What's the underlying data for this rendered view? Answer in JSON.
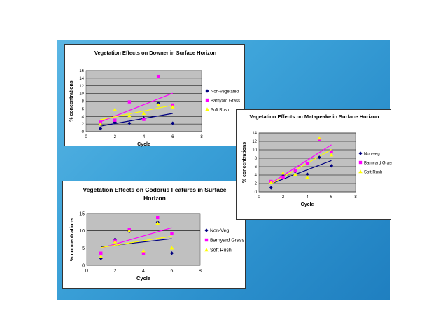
{
  "colors": {
    "plot_bg": "#c0c0c0",
    "grid": "#000000",
    "non_veg": "#000080",
    "barnyard": "#ff00ff",
    "soft_rush": "#ffff00",
    "slide_accent": "#2b8fcc"
  },
  "chart_data": [
    {
      "id": "downer",
      "type": "scatter",
      "title": "Vegetation Effects on Downer in Surface Horizon",
      "xlabel": "Cycle",
      "ylabel": "% concentrations",
      "xlim": [
        0,
        8
      ],
      "ylim": [
        0,
        16
      ],
      "xticks": [
        0,
        2,
        4,
        6,
        8
      ],
      "yticks": [
        0,
        2,
        4,
        6,
        8,
        10,
        12,
        14,
        16
      ],
      "grid": true,
      "legend_position": "right",
      "trendlines": true,
      "series": [
        {
          "name": "Non-Vegetated",
          "marker": "diamond",
          "color_key": "non_veg",
          "x": [
            1,
            2,
            3,
            4,
            5,
            6
          ],
          "y": [
            0.8,
            2.5,
            2.2,
            3.5,
            7.5,
            2.2
          ]
        },
        {
          "name": "Barnyard Grass",
          "marker": "square",
          "color_key": "barnyard",
          "x": [
            1,
            2,
            3,
            4,
            5,
            6
          ],
          "y": [
            2.5,
            3.0,
            7.8,
            3.2,
            14.5,
            7.0
          ]
        },
        {
          "name": "Soft Rush",
          "marker": "triangle",
          "color_key": "soft_rush",
          "x": [
            1,
            2,
            3,
            4,
            5,
            6
          ],
          "y": [
            2.0,
            5.8,
            4.2,
            4.8,
            7.0,
            6.5
          ]
        }
      ]
    },
    {
      "id": "matapeake",
      "type": "scatter",
      "title": "Vegetation Effects on Matapeake in Surface Horizon",
      "xlabel": "Cycle",
      "ylabel": "% concentrations",
      "xlim": [
        0,
        8
      ],
      "ylim": [
        0,
        14
      ],
      "xticks": [
        0,
        2,
        4,
        6,
        8
      ],
      "yticks": [
        0,
        2,
        4,
        6,
        8,
        10,
        12,
        14
      ],
      "grid": true,
      "legend_position": "right",
      "trendlines": true,
      "series": [
        {
          "name": "Non-veg",
          "marker": "diamond",
          "color_key": "non_veg",
          "x": [
            1,
            2,
            3,
            4,
            5,
            6
          ],
          "y": [
            1.0,
            3.8,
            4.8,
            4.2,
            8.2,
            6.2
          ]
        },
        {
          "name": "Barnyard Grass",
          "marker": "square",
          "color_key": "barnyard",
          "x": [
            1,
            2,
            3,
            4,
            5,
            6
          ],
          "y": [
            2.5,
            3.5,
            5.0,
            6.8,
            12.5,
            9.5
          ]
        },
        {
          "name": "Soft Rush",
          "marker": "triangle",
          "color_key": "soft_rush",
          "x": [
            1,
            2,
            3,
            4,
            5,
            6
          ],
          "y": [
            2.2,
            4.5,
            4.2,
            3.5,
            12.8,
            8.8
          ]
        }
      ]
    },
    {
      "id": "codorus",
      "type": "scatter",
      "title": "Vegetation Effects on Codorus Features in Surface Horizon",
      "xlabel": "Cycle",
      "ylabel": "% concentrations",
      "xlim": [
        0,
        8
      ],
      "ylim": [
        0,
        15
      ],
      "xticks": [
        0,
        2,
        4,
        6,
        8
      ],
      "yticks": [
        0,
        5,
        10,
        15
      ],
      "grid": true,
      "legend_position": "right",
      "trendlines": true,
      "series": [
        {
          "name": "Non-Veg",
          "marker": "diamond",
          "color_key": "non_veg",
          "x": [
            1,
            2,
            3,
            4,
            5,
            6
          ],
          "y": [
            2.0,
            7.5,
            9.8,
            3.8,
            12.5,
            3.5
          ]
        },
        {
          "name": "Barnyard Grass",
          "marker": "square",
          "color_key": "barnyard",
          "x": [
            1,
            2,
            3,
            4,
            5,
            6
          ],
          "y": [
            3.5,
            7.0,
            10.5,
            3.5,
            13.8,
            9.2
          ]
        },
        {
          "name": "Soft Rush",
          "marker": "triangle",
          "color_key": "soft_rush",
          "x": [
            1,
            2,
            3,
            4,
            5,
            6
          ],
          "y": [
            2.5,
            6.8,
            10.0,
            4.2,
            12.2,
            5.0
          ]
        }
      ]
    }
  ]
}
